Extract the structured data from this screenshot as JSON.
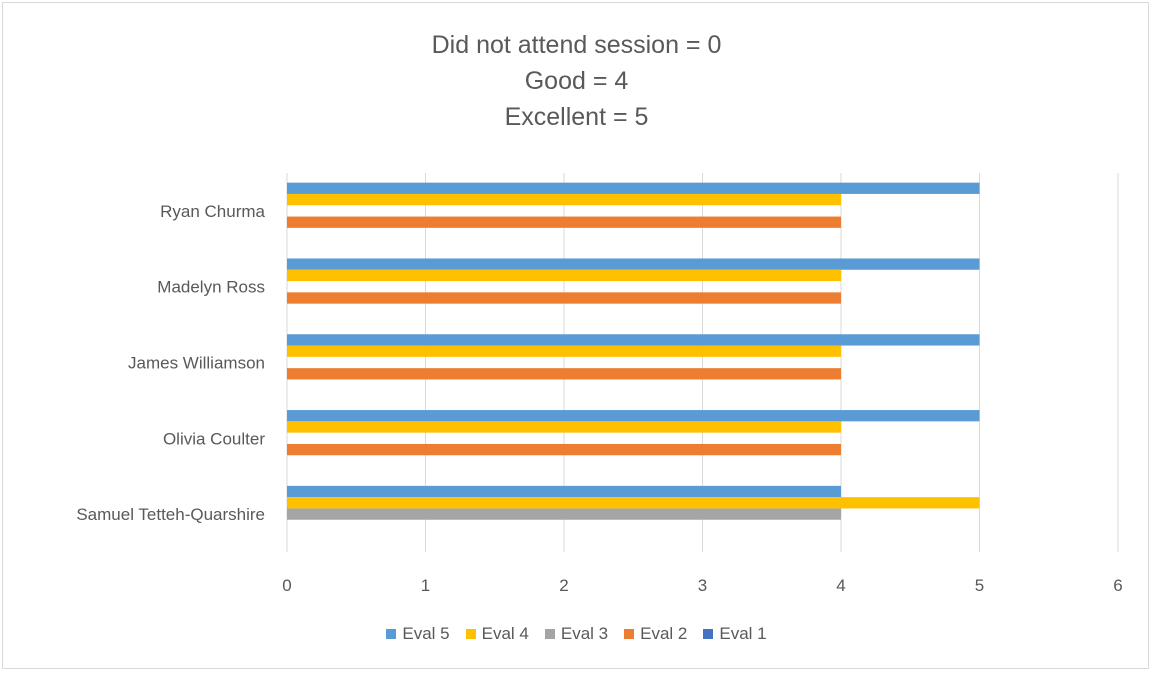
{
  "chart_data": {
    "type": "bar",
    "orientation": "horizontal",
    "title_lines": [
      "Did not attend session = 0",
      "Good = 4",
      "Excellent = 5"
    ],
    "categories": [
      "Ryan Churma",
      "Madelyn Ross",
      "James Williamson",
      "Olivia Coulter",
      "Samuel Tetteh-Quarshire"
    ],
    "series": [
      {
        "name": "Eval 5",
        "color": "#5b9bd5",
        "values": [
          5,
          5,
          5,
          5,
          4
        ]
      },
      {
        "name": "Eval 4",
        "color": "#ffc000",
        "values": [
          4,
          4,
          4,
          4,
          5
        ]
      },
      {
        "name": "Eval 3",
        "color": "#a5a5a5",
        "values": [
          0,
          0,
          0,
          0,
          4
        ]
      },
      {
        "name": "Eval 2",
        "color": "#ed7d31",
        "values": [
          4,
          4,
          4,
          4,
          0
        ]
      },
      {
        "name": "Eval 1",
        "color": "#4472c4",
        "values": [
          0,
          0,
          0,
          0,
          0
        ]
      }
    ],
    "xlim": [
      0,
      6
    ],
    "xticks": [
      "0",
      "1",
      "2",
      "3",
      "4",
      "5",
      "6"
    ],
    "grid": true,
    "legend_position": "bottom"
  }
}
